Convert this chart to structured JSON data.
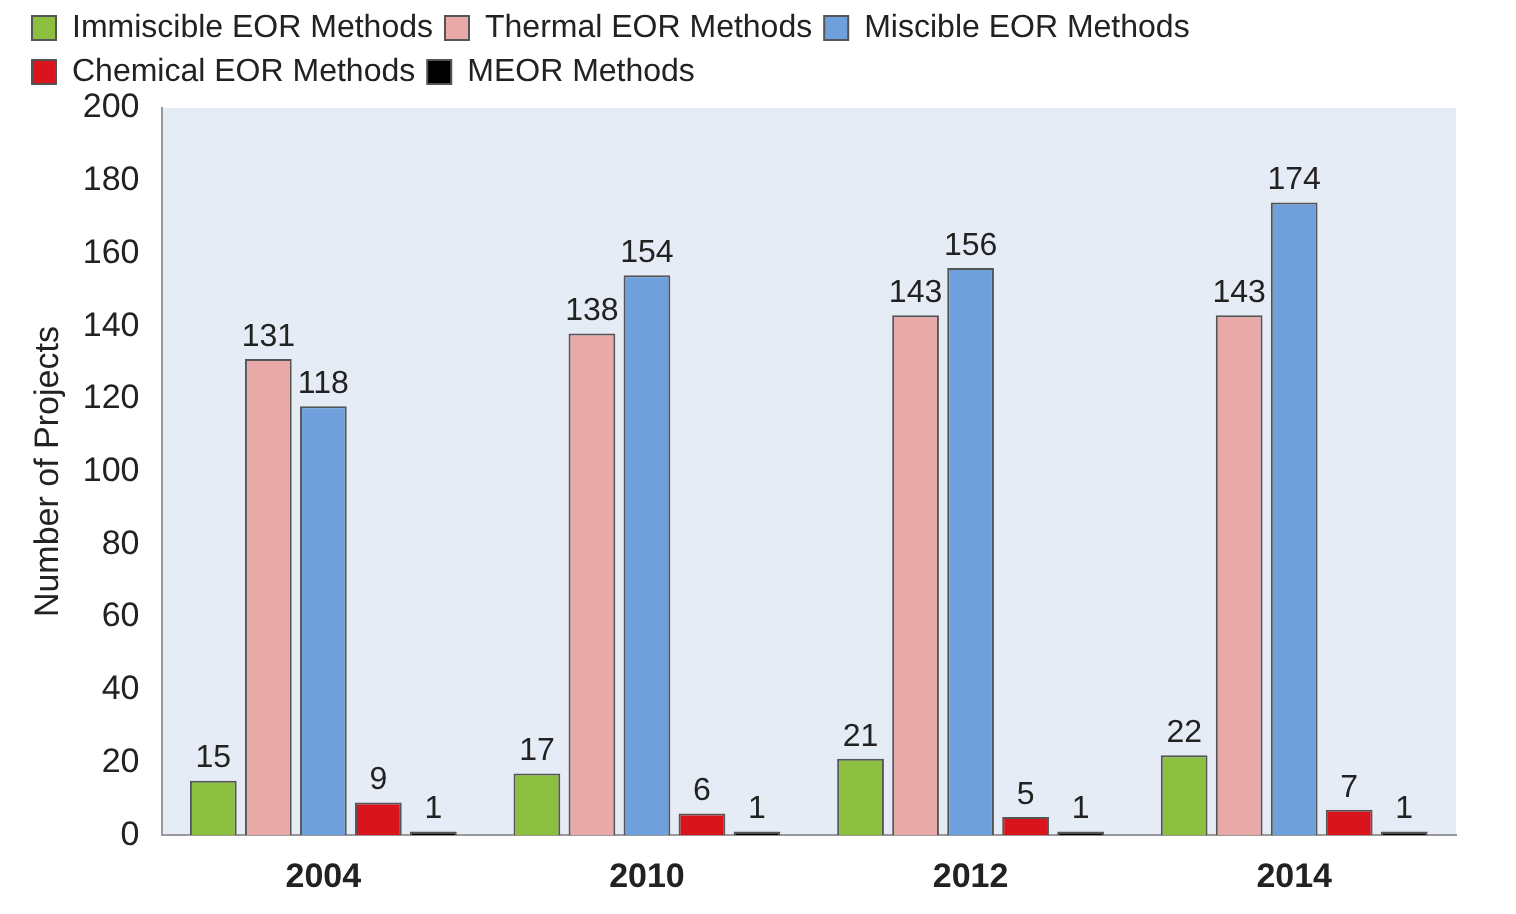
{
  "chart_data": {
    "type": "bar",
    "ylabel": "Number of Projects",
    "categories": [
      "2004",
      "2010",
      "2012",
      "2014"
    ],
    "series": [
      {
        "name": "Immiscible EOR Methods",
        "color": "#8cbf3f",
        "values": [
          15,
          17,
          21,
          22
        ]
      },
      {
        "name": "Thermal EOR Methods",
        "color": "#e8a9a9",
        "values": [
          131,
          138,
          143,
          143
        ]
      },
      {
        "name": "Miscible EOR Methods",
        "color": "#6fa0dc",
        "values": [
          118,
          154,
          156,
          174
        ]
      },
      {
        "name": "Chemical EOR Methods",
        "color": "#d9141c",
        "values": [
          9,
          6,
          5,
          7
        ]
      },
      {
        "name": "MEOR Methods",
        "color": "#000000",
        "values": [
          1,
          1,
          1,
          1
        ]
      }
    ],
    "ylim": [
      0,
      200
    ],
    "yticks": [
      0,
      20,
      40,
      60,
      80,
      100,
      120,
      140,
      160,
      180,
      200
    ],
    "grid": false,
    "legend": "top",
    "data_labels": true
  }
}
